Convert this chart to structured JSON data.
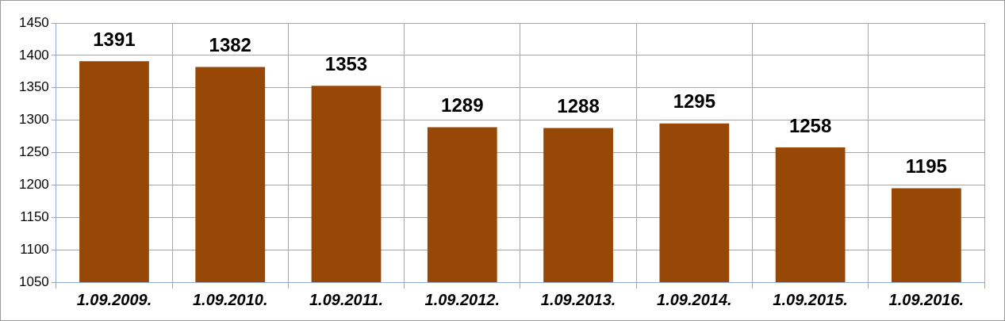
{
  "chart_data": {
    "type": "bar",
    "categories": [
      "1.09.2009.",
      "1.09.2010.",
      "1.09.2011.",
      "1.09.2012.",
      "1.09.2013.",
      "1.09.2014.",
      "1.09.2015.",
      "1.09.2016."
    ],
    "values": [
      1391,
      1382,
      1353,
      1289,
      1288,
      1295,
      1258,
      1195
    ],
    "color": "#974706",
    "ylim": [
      1050,
      1450
    ],
    "yticks": [
      1050,
      1100,
      1150,
      1200,
      1250,
      1300,
      1350,
      1400,
      1450
    ],
    "grid": true,
    "data_labels": true
  }
}
